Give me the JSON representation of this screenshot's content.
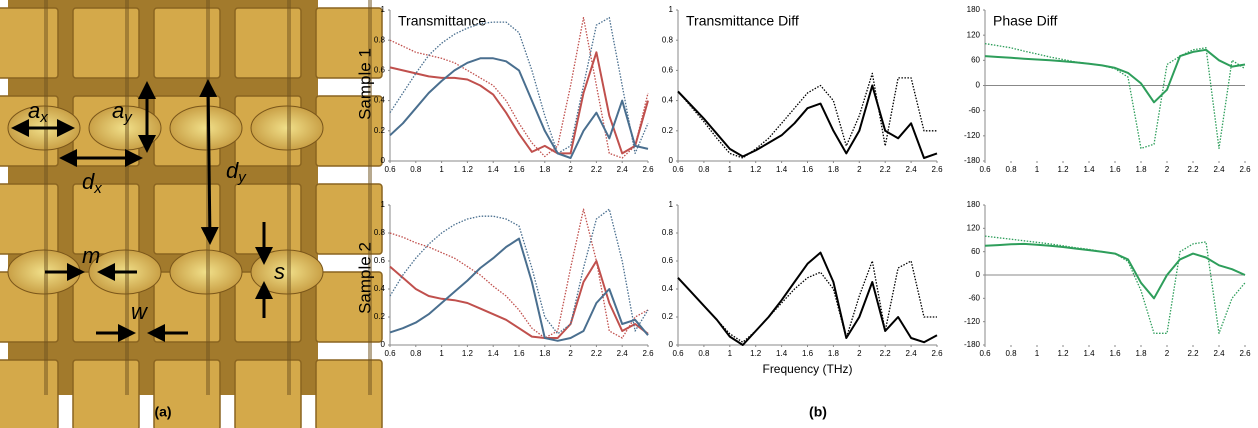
{
  "panel_labels": [
    "(a)",
    "(b)"
  ],
  "row_labels": [
    "Sample 1",
    "Sample 2"
  ],
  "image_labels": {
    "ax": {
      "base": "a",
      "sub": "x"
    },
    "ay": {
      "base": "a",
      "sub": "y"
    },
    "dx": {
      "base": "d",
      "sub": "x"
    },
    "dy": {
      "base": "d",
      "sub": "y"
    },
    "m": "m",
    "s": "s",
    "w": "w"
  },
  "chart_data": [
    {
      "type": "line",
      "title": "Transmittance",
      "x": [
        0.6,
        0.7,
        0.8,
        0.9,
        1.0,
        1.1,
        1.2,
        1.3,
        1.4,
        1.5,
        1.6,
        1.7,
        1.8,
        1.9,
        2.0,
        2.1,
        2.2,
        2.3,
        2.4,
        2.5,
        2.6
      ],
      "xlim": [
        0.6,
        2.6
      ],
      "xticks": [
        0.6,
        0.8,
        1,
        1.2,
        1.4,
        1.6,
        1.8,
        2,
        2.2,
        2.4,
        2.6
      ],
      "ylim": [
        0,
        1
      ],
      "yticks": [
        0,
        0.2,
        0.4,
        0.6,
        0.8,
        1
      ],
      "series": [
        {
          "color": "#c0504d",
          "dash": false,
          "values": [
            0.62,
            0.6,
            0.58,
            0.56,
            0.55,
            0.55,
            0.54,
            0.5,
            0.44,
            0.32,
            0.18,
            0.06,
            0.1,
            0.05,
            0.05,
            0.45,
            0.72,
            0.3,
            0.05,
            0.1,
            0.4
          ]
        },
        {
          "color": "#c0504d",
          "dash": true,
          "values": [
            0.8,
            0.76,
            0.72,
            0.7,
            0.68,
            0.65,
            0.6,
            0.55,
            0.5,
            0.4,
            0.25,
            0.12,
            0.03,
            0.1,
            0.5,
            0.95,
            0.5,
            0.05,
            0.02,
            0.1,
            0.45
          ]
        },
        {
          "color": "#4a6f8f",
          "dash": false,
          "values": [
            0.17,
            0.25,
            0.35,
            0.45,
            0.53,
            0.6,
            0.65,
            0.68,
            0.68,
            0.66,
            0.6,
            0.4,
            0.2,
            0.05,
            0.02,
            0.2,
            0.32,
            0.15,
            0.4,
            0.1,
            0.08
          ]
        },
        {
          "color": "#4a6f8f",
          "dash": true,
          "values": [
            0.32,
            0.45,
            0.58,
            0.7,
            0.78,
            0.84,
            0.88,
            0.91,
            0.92,
            0.92,
            0.85,
            0.6,
            0.3,
            0.05,
            0.1,
            0.5,
            0.9,
            0.95,
            0.5,
            0.05,
            0.25
          ]
        }
      ]
    },
    {
      "type": "line",
      "title": "Transmittance Diff",
      "x": [
        0.6,
        0.7,
        0.8,
        0.9,
        1.0,
        1.1,
        1.2,
        1.3,
        1.4,
        1.5,
        1.6,
        1.7,
        1.8,
        1.9,
        2.0,
        2.1,
        2.2,
        2.3,
        2.4,
        2.5,
        2.6
      ],
      "xlim": [
        0.6,
        2.6
      ],
      "xticks": [
        0.6,
        0.8,
        1,
        1.2,
        1.4,
        1.6,
        1.8,
        2,
        2.2,
        2.4,
        2.6
      ],
      "ylim": [
        0,
        1
      ],
      "yticks": [
        0,
        0.2,
        0.4,
        0.6,
        0.8,
        1
      ],
      "series": [
        {
          "color": "#000000",
          "dash": false,
          "values": [
            0.46,
            0.37,
            0.28,
            0.18,
            0.08,
            0.03,
            0.07,
            0.12,
            0.17,
            0.25,
            0.35,
            0.38,
            0.2,
            0.05,
            0.2,
            0.5,
            0.2,
            0.15,
            0.25,
            0.02,
            0.05
          ]
        },
        {
          "color": "#000000",
          "dash": true,
          "values": [
            0.46,
            0.36,
            0.26,
            0.15,
            0.05,
            0.02,
            0.08,
            0.15,
            0.25,
            0.35,
            0.45,
            0.5,
            0.4,
            0.1,
            0.3,
            0.58,
            0.1,
            0.55,
            0.55,
            0.2,
            0.2
          ]
        }
      ]
    },
    {
      "type": "line",
      "title": "Phase Diff",
      "x": [
        0.6,
        0.7,
        0.8,
        0.9,
        1.0,
        1.1,
        1.2,
        1.3,
        1.4,
        1.5,
        1.6,
        1.7,
        1.8,
        1.9,
        2.0,
        2.1,
        2.2,
        2.3,
        2.4,
        2.5,
        2.6
      ],
      "xlim": [
        0.6,
        2.6
      ],
      "xticks": [
        0.6,
        0.8,
        1,
        1.2,
        1.4,
        1.6,
        1.8,
        2,
        2.2,
        2.4,
        2.6
      ],
      "ylim": [
        -180,
        180
      ],
      "yticks": [
        -180,
        -120,
        -60,
        0,
        60,
        120,
        180
      ],
      "series": [
        {
          "color": "#2e9e5b",
          "dash": false,
          "values": [
            70,
            68,
            66,
            64,
            62,
            60,
            58,
            55,
            52,
            48,
            42,
            30,
            5,
            -40,
            -10,
            70,
            80,
            85,
            60,
            45,
            50
          ]
        },
        {
          "color": "#2e9e5b",
          "dash": true,
          "values": [
            100,
            95,
            90,
            82,
            75,
            68,
            62,
            56,
            52,
            48,
            40,
            20,
            -150,
            -140,
            50,
            70,
            85,
            90,
            -150,
            60,
            40
          ]
        }
      ]
    },
    {
      "type": "line",
      "x": [
        0.6,
        0.7,
        0.8,
        0.9,
        1.0,
        1.1,
        1.2,
        1.3,
        1.4,
        1.5,
        1.6,
        1.7,
        1.8,
        1.9,
        2.0,
        2.1,
        2.2,
        2.3,
        2.4,
        2.5,
        2.6
      ],
      "xlim": [
        0.6,
        2.6
      ],
      "xticks": [
        0.6,
        0.8,
        1,
        1.2,
        1.4,
        1.6,
        1.8,
        2,
        2.2,
        2.4,
        2.6
      ],
      "ylim": [
        0,
        1
      ],
      "yticks": [
        0,
        0.2,
        0.4,
        0.6,
        0.8,
        1
      ],
      "series": [
        {
          "color": "#c0504d",
          "dash": false,
          "values": [
            0.56,
            0.48,
            0.4,
            0.35,
            0.33,
            0.32,
            0.3,
            0.26,
            0.22,
            0.18,
            0.12,
            0.06,
            0.05,
            0.05,
            0.15,
            0.45,
            0.6,
            0.3,
            0.1,
            0.15,
            0.08
          ]
        },
        {
          "color": "#c0504d",
          "dash": true,
          "values": [
            0.8,
            0.77,
            0.73,
            0.7,
            0.66,
            0.62,
            0.56,
            0.5,
            0.42,
            0.35,
            0.25,
            0.12,
            0.05,
            0.1,
            0.55,
            0.97,
            0.6,
            0.1,
            0.05,
            0.2,
            0.25
          ]
        },
        {
          "color": "#4a6f8f",
          "dash": false,
          "values": [
            0.09,
            0.12,
            0.16,
            0.22,
            0.3,
            0.38,
            0.46,
            0.55,
            0.62,
            0.7,
            0.76,
            0.45,
            0.05,
            0.03,
            0.05,
            0.1,
            0.3,
            0.4,
            0.15,
            0.18,
            0.07
          ]
        },
        {
          "color": "#4a6f8f",
          "dash": true,
          "values": [
            0.35,
            0.5,
            0.62,
            0.72,
            0.8,
            0.86,
            0.9,
            0.92,
            0.92,
            0.9,
            0.85,
            0.55,
            0.2,
            0.08,
            0.15,
            0.55,
            0.9,
            0.97,
            0.6,
            0.1,
            0.25
          ]
        }
      ]
    },
    {
      "type": "line",
      "xlabel": "Frequency (THz)",
      "x": [
        0.6,
        0.7,
        0.8,
        0.9,
        1.0,
        1.1,
        1.2,
        1.3,
        1.4,
        1.5,
        1.6,
        1.7,
        1.8,
        1.9,
        2.0,
        2.1,
        2.2,
        2.3,
        2.4,
        2.5,
        2.6
      ],
      "xlim": [
        0.6,
        2.6
      ],
      "xticks": [
        0.6,
        0.8,
        1,
        1.2,
        1.4,
        1.6,
        1.8,
        2,
        2.2,
        2.4,
        2.6
      ],
      "ylim": [
        0,
        1
      ],
      "yticks": [
        0,
        0.2,
        0.4,
        0.6,
        0.8,
        1
      ],
      "series": [
        {
          "color": "#000000",
          "dash": false,
          "values": [
            0.48,
            0.38,
            0.28,
            0.18,
            0.06,
            0.0,
            0.1,
            0.2,
            0.32,
            0.45,
            0.58,
            0.66,
            0.45,
            0.05,
            0.2,
            0.45,
            0.1,
            0.2,
            0.05,
            0.02,
            0.07
          ]
        },
        {
          "color": "#000000",
          "dash": true,
          "values": [
            0.48,
            0.38,
            0.28,
            0.18,
            0.08,
            0.02,
            0.1,
            0.2,
            0.3,
            0.4,
            0.48,
            0.52,
            0.4,
            0.05,
            0.35,
            0.6,
            0.1,
            0.55,
            0.6,
            0.2,
            0.2
          ]
        }
      ]
    },
    {
      "type": "line",
      "x": [
        0.6,
        0.7,
        0.8,
        0.9,
        1.0,
        1.1,
        1.2,
        1.3,
        1.4,
        1.5,
        1.6,
        1.7,
        1.8,
        1.9,
        2.0,
        2.1,
        2.2,
        2.3,
        2.4,
        2.5,
        2.6
      ],
      "xlim": [
        0.6,
        2.6
      ],
      "xticks": [
        0.6,
        0.8,
        1,
        1.2,
        1.4,
        1.6,
        1.8,
        2,
        2.2,
        2.4,
        2.6
      ],
      "ylim": [
        -180,
        180
      ],
      "yticks": [
        -180,
        -120,
        -60,
        0,
        60,
        120,
        180
      ],
      "series": [
        {
          "color": "#2e9e5b",
          "dash": false,
          "values": [
            75,
            77,
            79,
            80,
            78,
            75,
            72,
            68,
            64,
            60,
            55,
            40,
            -20,
            -60,
            0,
            40,
            55,
            45,
            25,
            15,
            0
          ]
        },
        {
          "color": "#2e9e5b",
          "dash": true,
          "values": [
            100,
            96,
            92,
            88,
            84,
            80,
            75,
            70,
            66,
            60,
            55,
            35,
            -40,
            -150,
            -150,
            60,
            80,
            85,
            -150,
            -60,
            -20
          ]
        }
      ]
    }
  ]
}
